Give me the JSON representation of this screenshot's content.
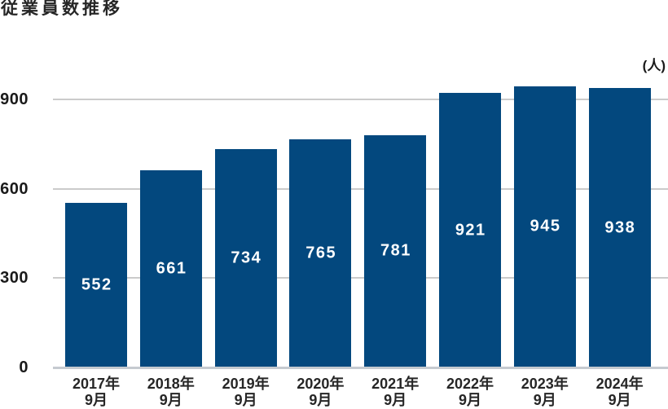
{
  "page": {
    "title": "従業員数推移",
    "unit_label": "(人)"
  },
  "colors": {
    "background": "#FFFFFF",
    "bar": "#03487E",
    "grid_line": "#CBCBCB",
    "axis_line": "#C5CAD0",
    "title_text": "#262626",
    "tick_text": "#1A1A1A",
    "category_text": "#262626",
    "value_text": "#FFFFFF"
  },
  "chart_data": {
    "type": "bar",
    "title": "従業員数推移",
    "unit": "(人)",
    "categories": [
      {
        "year": "2017年",
        "month": "9月"
      },
      {
        "year": "2018年",
        "month": "9月"
      },
      {
        "year": "2019年",
        "month": "9月"
      },
      {
        "year": "2020年",
        "month": "9月"
      },
      {
        "year": "2021年",
        "month": "9月"
      },
      {
        "year": "2022年",
        "month": "9月"
      },
      {
        "year": "2023年",
        "month": "9月"
      },
      {
        "year": "2024年",
        "month": "9月"
      }
    ],
    "values": [
      552,
      661,
      734,
      765,
      781,
      921,
      945,
      938
    ],
    "ylim": [
      0,
      900
    ],
    "yticks": [
      0,
      300,
      600,
      900
    ],
    "ytick_labels": [
      "0",
      "300",
      "600",
      "900"
    ],
    "grid": true,
    "legend": false,
    "value_label_position": "inside-center",
    "xlabel": "",
    "ylabel": ""
  }
}
